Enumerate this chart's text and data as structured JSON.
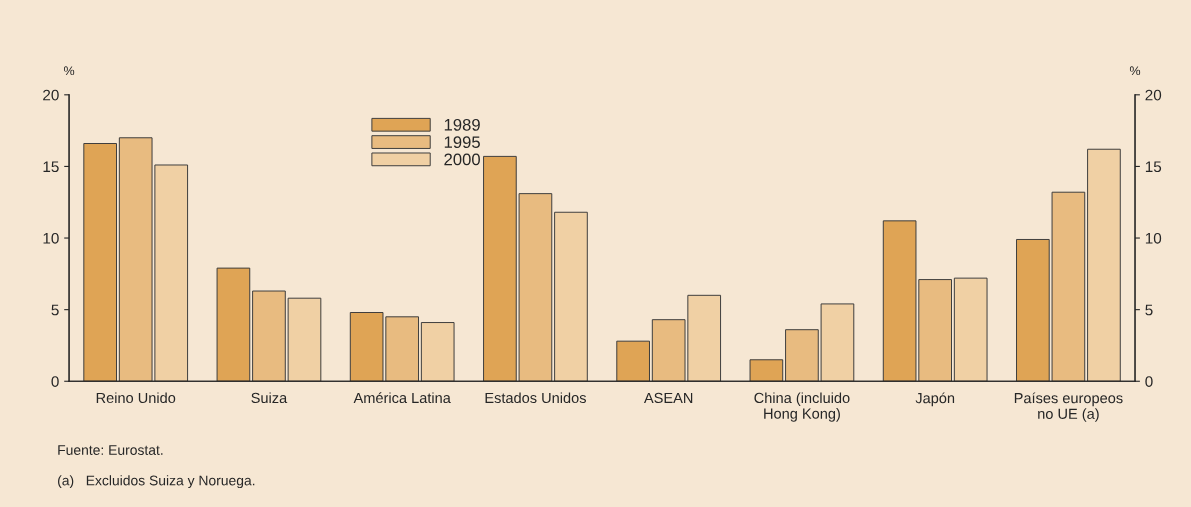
{
  "chart_data": {
    "type": "bar",
    "categories": [
      "Reino Unido",
      "Suiza",
      "América Latina",
      "Estados Unidos",
      "ASEAN",
      "China (incluido\nHong Kong)",
      "Japón",
      "Países europeos\nno UE (a)"
    ],
    "series": [
      {
        "name": "1989",
        "color": "#dfa455",
        "values": [
          16.6,
          7.9,
          4.8,
          15.7,
          2.8,
          1.5,
          11.2,
          9.9
        ]
      },
      {
        "name": "1995",
        "color": "#e8bb80",
        "values": [
          17.0,
          6.3,
          4.5,
          13.1,
          4.3,
          3.6,
          7.1,
          13.2
        ]
      },
      {
        "name": "2000",
        "color": "#f0d0a4",
        "values": [
          15.1,
          5.8,
          4.1,
          11.8,
          6.0,
          5.4,
          7.2,
          16.2
        ]
      }
    ],
    "ylabel": "%",
    "y2label": "%",
    "ylim": [
      0,
      20
    ],
    "yticks": [
      0,
      5,
      10,
      15,
      20
    ],
    "y2lim": [
      0,
      20
    ],
    "y2ticks": [
      0,
      5,
      10,
      15,
      20
    ],
    "grid": false,
    "legend": "top left",
    "annotations": [
      "Fuente: Eurostat.",
      "(a)   Excluidos Suiza y Noruega."
    ]
  }
}
